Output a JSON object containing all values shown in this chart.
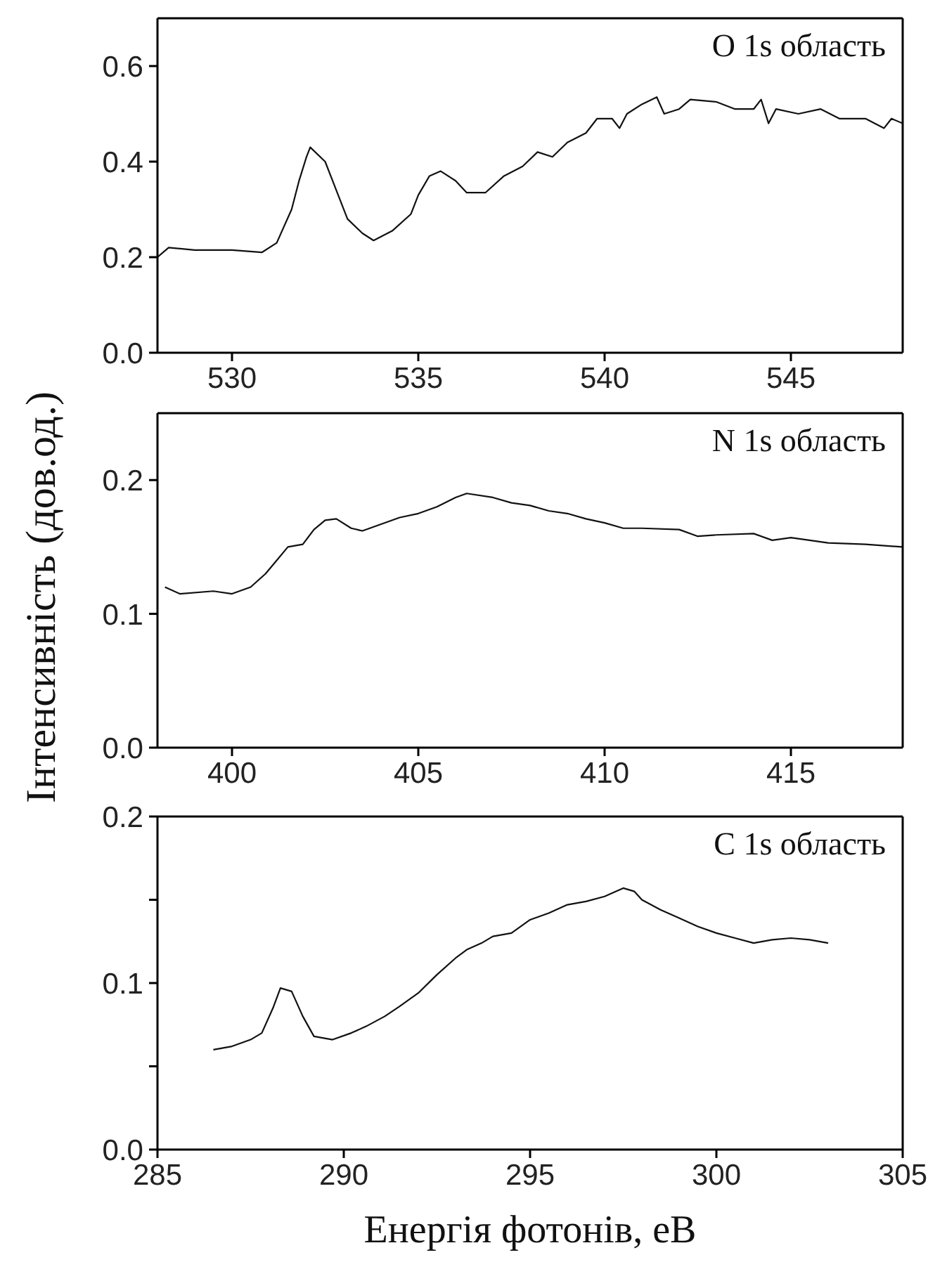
{
  "chart_data": [
    {
      "type": "line",
      "annotations": [
        "O 1s область"
      ],
      "xlim": [
        528,
        548
      ],
      "xticks": [
        530,
        535,
        540,
        545
      ],
      "ylim": [
        0,
        0.7
      ],
      "yticks": [
        {
          "value": 0,
          "label": "0.0"
        },
        0.2,
        0.4,
        0.6
      ],
      "grid": false,
      "marker": "none",
      "line_style": "solid",
      "series": [
        {
          "color": "#111111",
          "x": [
            528,
            528.3,
            529,
            530,
            530.8,
            531.2,
            531.6,
            531.8,
            532.0,
            532.1,
            532.5,
            532.8,
            533.1,
            533.5,
            533.8,
            534.3,
            534.8,
            535.0,
            535.3,
            535.6,
            536.0,
            536.3,
            536.8,
            537.3,
            537.8,
            538.2,
            538.6,
            539.0,
            539.5,
            539.8,
            540.2,
            540.4,
            540.6,
            541.0,
            541.4,
            541.6,
            542.0,
            542.3,
            543.0,
            543.5,
            544.0,
            544.2,
            544.4,
            544.6,
            545.2,
            545.8,
            546.3,
            547.0,
            547.5,
            547.7,
            548.0
          ],
          "values": [
            0.2,
            0.22,
            0.215,
            0.215,
            0.21,
            0.23,
            0.3,
            0.36,
            0.41,
            0.43,
            0.4,
            0.34,
            0.28,
            0.25,
            0.235,
            0.255,
            0.29,
            0.33,
            0.37,
            0.38,
            0.36,
            0.335,
            0.335,
            0.37,
            0.39,
            0.42,
            0.41,
            0.44,
            0.46,
            0.49,
            0.49,
            0.47,
            0.5,
            0.52,
            0.535,
            0.5,
            0.51,
            0.53,
            0.525,
            0.51,
            0.51,
            0.53,
            0.48,
            0.51,
            0.5,
            0.51,
            0.49,
            0.49,
            0.47,
            0.49,
            0.48
          ]
        }
      ]
    },
    {
      "type": "line",
      "ylabel": "Інтенсивність (дов.од.)",
      "annotations": [
        "N 1s область"
      ],
      "xlim": [
        398,
        418
      ],
      "xticks": [
        400,
        405,
        410,
        415
      ],
      "ylim": [
        0,
        0.25
      ],
      "yticks": [
        {
          "value": 0,
          "label": "0.0"
        },
        0.1,
        0.2
      ],
      "grid": false,
      "marker": "none",
      "line_style": "solid",
      "series": [
        {
          "color": "#111111",
          "x": [
            398.2,
            398.6,
            399.5,
            400,
            400.5,
            400.9,
            401.2,
            401.5,
            401.9,
            402.2,
            402.5,
            402.8,
            403.2,
            403.5,
            404,
            404.5,
            405,
            405.5,
            406,
            406.3,
            407,
            407.5,
            408,
            408.5,
            409,
            409.5,
            410,
            410.5,
            411,
            412,
            412.5,
            413,
            414,
            414.5,
            415,
            416,
            417,
            418
          ],
          "values": [
            0.12,
            0.115,
            0.117,
            0.115,
            0.12,
            0.13,
            0.14,
            0.15,
            0.152,
            0.163,
            0.17,
            0.171,
            0.164,
            0.162,
            0.167,
            0.172,
            0.175,
            0.18,
            0.187,
            0.19,
            0.187,
            0.183,
            0.181,
            0.177,
            0.175,
            0.171,
            0.168,
            0.164,
            0.164,
            0.163,
            0.158,
            0.159,
            0.16,
            0.155,
            0.157,
            0.153,
            0.152,
            0.15
          ]
        }
      ]
    },
    {
      "type": "line",
      "xlabel": "Енергія фотонів, еВ",
      "annotations": [
        "C 1s область"
      ],
      "xlim": [
        285,
        305
      ],
      "xticks": [
        285,
        290,
        295,
        300,
        305
      ],
      "ylim": [
        0,
        0.2
      ],
      "yticks": [
        {
          "value": 0,
          "label": "0.0"
        },
        {
          "value": 0.05,
          "label": null
        },
        0.1,
        {
          "value": 0.15,
          "label": null
        },
        0.2
      ],
      "grid": false,
      "marker": "none",
      "line_style": "solid",
      "series": [
        {
          "color": "#111111",
          "x": [
            286.5,
            287,
            287.5,
            287.8,
            288.1,
            288.3,
            288.6,
            288.9,
            289.2,
            289.7,
            290.2,
            290.6,
            291.1,
            291.5,
            292,
            292.5,
            293,
            293.3,
            293.7,
            294,
            294.5,
            295,
            295.5,
            296,
            296.5,
            297,
            297.5,
            297.8,
            298,
            298.5,
            299,
            299.5,
            300,
            300.5,
            301,
            301.5,
            302,
            302.5,
            303
          ],
          "values": [
            0.06,
            0.062,
            0.066,
            0.07,
            0.085,
            0.097,
            0.095,
            0.08,
            0.068,
            0.066,
            0.07,
            0.074,
            0.08,
            0.086,
            0.094,
            0.105,
            0.115,
            0.12,
            0.124,
            0.128,
            0.13,
            0.138,
            0.142,
            0.147,
            0.149,
            0.152,
            0.157,
            0.155,
            0.15,
            0.144,
            0.139,
            0.134,
            0.13,
            0.127,
            0.124,
            0.126,
            0.127,
            0.126,
            0.124
          ]
        }
      ]
    }
  ]
}
